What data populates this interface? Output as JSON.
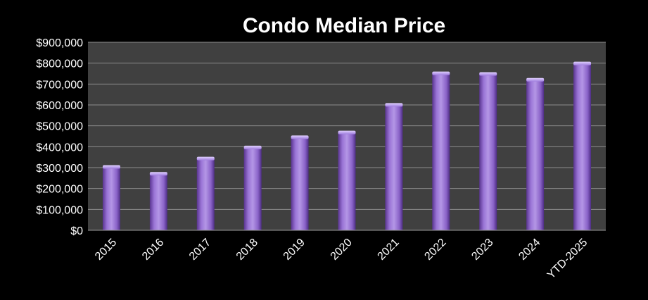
{
  "chart_data": {
    "type": "bar",
    "title": "Condo Median Price",
    "xlabel": "",
    "ylabel": "",
    "categories": [
      "2015",
      "2016",
      "2017",
      "2018",
      "2019",
      "2020",
      "2021",
      "2022",
      "2023",
      "2024",
      "YTD-2025"
    ],
    "values": [
      305000,
      272000,
      345000,
      398000,
      447000,
      470000,
      602000,
      753000,
      750000,
      722000,
      800000
    ],
    "ylim": [
      0,
      900000
    ],
    "yticks": [
      0,
      100000,
      200000,
      300000,
      400000,
      500000,
      600000,
      700000,
      800000,
      900000
    ],
    "ytick_labels": [
      "$0",
      "$100,000",
      "$200,000",
      "$300,000",
      "$400,000",
      "$500,000",
      "$600,000",
      "$700,000",
      "$800,000",
      "$900,000"
    ],
    "grid": true,
    "legend": "none",
    "colors": {
      "background": "#000000",
      "plot_area": "#404040",
      "gridline": "#8c8c8c",
      "bar_light": "#b496e6",
      "bar_mid": "#8a63c8",
      "bar_dark": "#4e2d85",
      "text": "#ffffff"
    }
  }
}
